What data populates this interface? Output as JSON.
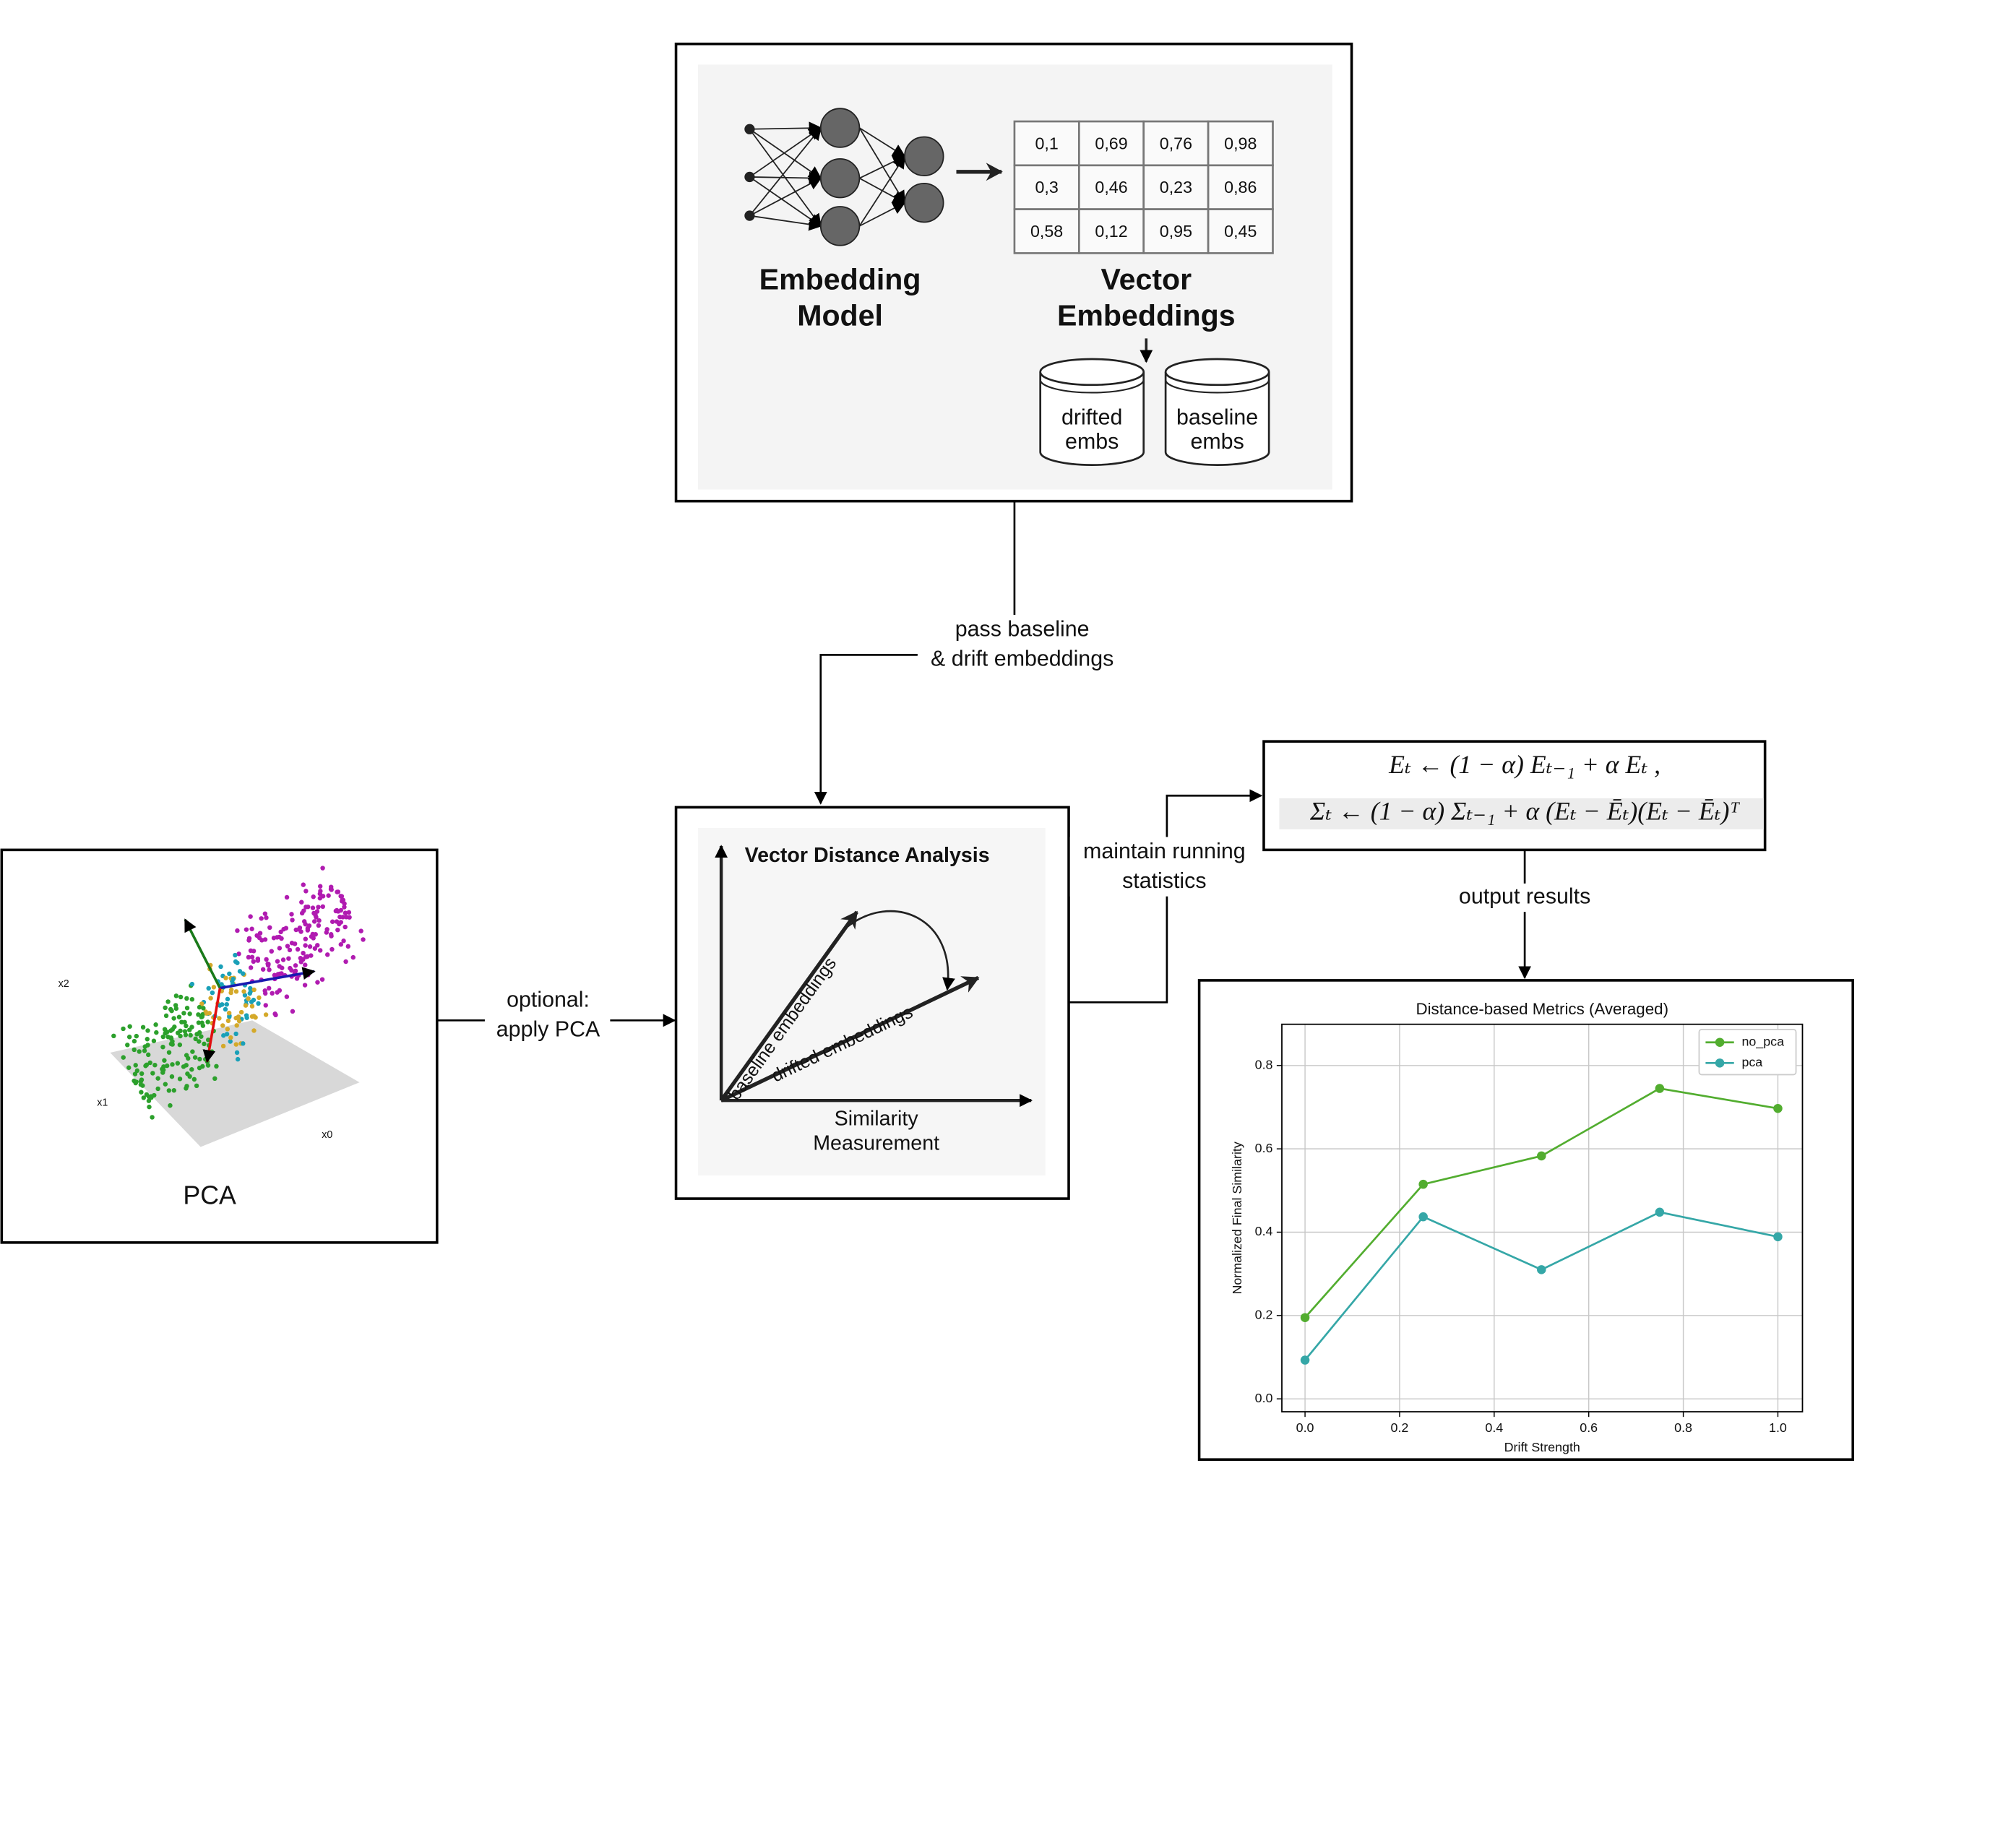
{
  "embedding_box": {
    "model_label": [
      "Embedding",
      "Model"
    ],
    "vector_label": [
      "Vector",
      "Embeddings"
    ],
    "table": {
      "rows": [
        [
          "0,1",
          "0,69",
          "0,76",
          "0,98"
        ],
        [
          "0,3",
          "0,46",
          "0,23",
          "0,86"
        ],
        [
          "0,58",
          "0,12",
          "0,95",
          "0,45"
        ]
      ]
    },
    "stores": [
      [
        "drifted",
        "embs"
      ],
      [
        "baseline",
        "embs"
      ]
    ]
  },
  "edges": {
    "pass": [
      "pass baseline",
      "& drift embeddings"
    ],
    "pca": [
      "optional:",
      "apply PCA"
    ],
    "stats": [
      "maintain running",
      "statistics"
    ],
    "output": [
      "output results"
    ]
  },
  "pca_box": {
    "title": "PCA",
    "axes": [
      "x2",
      "x1",
      "x0"
    ]
  },
  "distance_box": {
    "title": "Vector Distance Analysis",
    "vectors": [
      "baseline embeddings",
      "drifted embeddings"
    ],
    "axis_label": [
      "Similarity",
      "Measurement"
    ]
  },
  "formula": [
    "Eₜ ← (1 − α) Eₜ₋₁  +  α Eₜ ,",
    "Σₜ ← (1 − α) Σₜ₋₁  +  α (Eₜ − Ēₜ)(Eₜ − Ēₜ)ᵀ"
  ],
  "chart_data": {
    "type": "line",
    "title": "Distance-based Metrics (Averaged)",
    "x_label": "Drift Strength",
    "y_label": "Normalized Final Similarity",
    "x": [
      0,
      0.25,
      0.5,
      0.75,
      1.0
    ],
    "series": [
      {
        "name": "no_pca",
        "color": "#52ad2f",
        "values": [
          0.195,
          0.515,
          0.583,
          0.745,
          0.697
        ]
      },
      {
        "name": "pca",
        "color": "#35a7a7",
        "values": [
          0.093,
          0.437,
          0.31,
          0.448,
          0.389
        ]
      }
    ],
    "xlim": [
      -0.049,
      1.052
    ],
    "ylim": [
      -0.031,
      0.899
    ],
    "xticks": [
      {
        "value": 0,
        "label": "0.0"
      },
      0.2,
      0.4,
      0.6,
      0.8,
      {
        "value": 1,
        "label": "1.0"
      }
    ],
    "yticks": [
      {
        "value": 0,
        "label": "0.0"
      },
      0.2,
      0.4,
      0.6,
      0.8
    ],
    "grid": true,
    "legend": "upper right"
  }
}
